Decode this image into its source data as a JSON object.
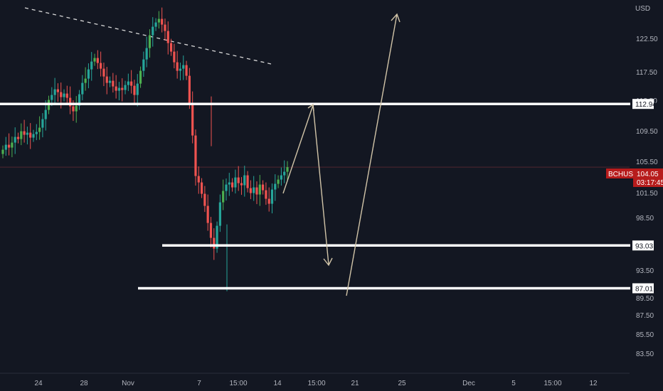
{
  "chart_data": {
    "type": "candlestick",
    "symbol": "BCHUSD",
    "currency": "USD",
    "current_price": "104.05",
    "countdown": "03:17:45",
    "ylim": [
      81.5,
      128.5
    ],
    "y_ticks": [
      "83.50",
      "85.50",
      "87.50",
      "89.50",
      "93.50",
      "95.50",
      "98.50",
      "101.50",
      "105.50",
      "109.50",
      "112.50",
      "117.50",
      "122.50"
    ],
    "x_ticks": [
      "24",
      "28",
      "Nov",
      "7",
      "15:00",
      "14",
      "15:00",
      "21",
      "25",
      "Dec",
      "5",
      "15:00",
      "12"
    ],
    "levels": [
      {
        "label": "112.94",
        "value": 112.94
      },
      {
        "label": "93.03",
        "value": 93.03
      },
      {
        "label": "87.01",
        "value": 87.01
      }
    ],
    "colors": {
      "background": "#131722",
      "up": "#26a69a",
      "up_bright": "#4caf50",
      "down": "#ef5350",
      "level_line": "#ffffff",
      "projection": "#d1c4a8",
      "current_tag": "#b71c1c"
    },
    "price_path": [
      106.5,
      107.2,
      106.8,
      107.5,
      108.3,
      108.0,
      109.1,
      108.6,
      108.9,
      108.2,
      108.7,
      109.0,
      109.6,
      110.8,
      112.1,
      113.5,
      114.2,
      115.0,
      114.6,
      113.9,
      114.4,
      113.8,
      112.6,
      111.9,
      112.7,
      114.3,
      115.9,
      116.5,
      117.8,
      118.9,
      119.4,
      118.7,
      117.9,
      116.8,
      115.9,
      116.2,
      115.4,
      114.8,
      115.2,
      114.9,
      115.6,
      116.1,
      115.5,
      114.2,
      115.8,
      117.6,
      119.2,
      120.8,
      122.6,
      123.8,
      124.4,
      124.9,
      124.1,
      123.2,
      121.5,
      120.3,
      118.8,
      117.6,
      117.9,
      118.4,
      116.9,
      113.1,
      108.5,
      102.8,
      101.9,
      100.3,
      98.6,
      96.2,
      94.1,
      92.6,
      95.8,
      99.1,
      100.7,
      101.6,
      101.9,
      101.2,
      102.6,
      101.8,
      101.5,
      102.9,
      101.1,
      100.4,
      101.2,
      100.2,
      101.6,
      100.8,
      99.6,
      98.9,
      100.9,
      101.7,
      102.3,
      102.9,
      103.4,
      104.05
    ]
  }
}
